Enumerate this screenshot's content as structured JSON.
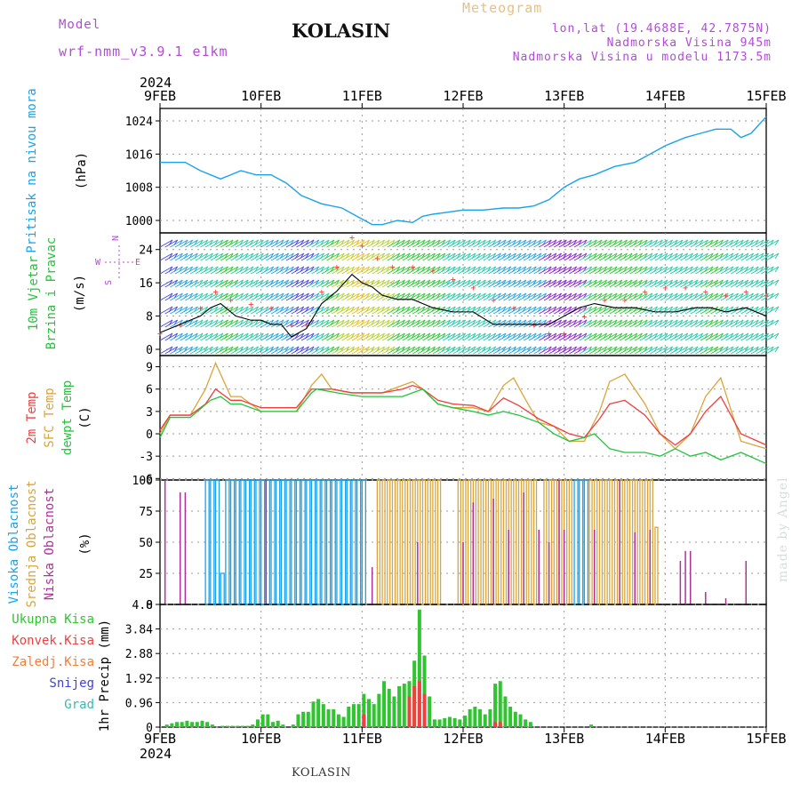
{
  "header": {
    "model_label": "Model",
    "model_name": "wrf-nmm_v3.9.1 e1km",
    "title": "Meteogram",
    "station": "KOLASIN",
    "coords": "lon,lat (19.4688E, 42.7875N)",
    "elevation": "Nadmorska Visina 945m",
    "model_elevation": "Nadmorska Visina u modelu 1173.5m"
  },
  "footer": {
    "station": "KOLASIN",
    "credit": "made by Angel"
  },
  "colors": {
    "pressure": "#1aa3ea",
    "wind_label": "#22c43a",
    "temp2m": "#f03e3e",
    "sfc": "#d9a53b",
    "dew": "#22c43a",
    "high_cloud": "#1aa3ea",
    "mid_cloud": "#d9a53b",
    "low_cloud": "#b0309a",
    "total_precip": "#30c430",
    "conv_precip": "#f04040",
    "frz_precip": "#f07f3a",
    "snow": "#4040dd",
    "grad": "#33bbbb",
    "purple_text": "#b24bd8"
  },
  "chart_data": [
    {
      "type": "line",
      "panel": "pressure",
      "ylabel": [
        "Pritisak na nivou mora",
        "(hPa)"
      ],
      "x_axis_top": {
        "year": "2024",
        "ticks": [
          "9FEB",
          "10FEB",
          "11FEB",
          "12FEB",
          "13FEB",
          "14FEB",
          "15FEB"
        ]
      },
      "x_axis_bottom": {
        "year": "2024",
        "ticks": [
          "9FEB",
          "10FEB",
          "11FEB",
          "12FEB",
          "13FEB",
          "14FEB",
          "15FEB"
        ]
      },
      "ylim": [
        997,
        1027
      ],
      "yticks": [
        1000,
        1008,
        1016,
        1024
      ],
      "grid": true,
      "series": [
        {
          "x": [
            0,
            0.25,
            0.4,
            0.6,
            0.8,
            0.95,
            1.1,
            1.25,
            1.4,
            1.6,
            1.8,
            1.95,
            2.1,
            2.2,
            2.35,
            2.5,
            2.6,
            2.7,
            2.85,
            3.0,
            3.2,
            3.4,
            3.55,
            3.7,
            3.85,
            4.0,
            4.15,
            4.3,
            4.5,
            4.7,
            4.85,
            5.0,
            5.1,
            5.2,
            5.35,
            5.5,
            5.65,
            5.75,
            5.85,
            6.0
          ],
          "values": [
            1014,
            1014,
            1012,
            1010,
            1012,
            1011,
            1011,
            1009,
            1006,
            1004,
            1003,
            1001,
            999,
            999,
            1000,
            999.5,
            1001,
            1001.5,
            1002,
            1002.5,
            1002.5,
            1003,
            1003,
            1003.5,
            1005,
            1008,
            1010,
            1011,
            1013,
            1014,
            1016,
            1018,
            1019,
            1020,
            1021,
            1022,
            1022,
            1020,
            1021,
            1025
          ]
        }
      ]
    },
    {
      "type": "line",
      "panel": "wind",
      "ylabel": [
        "10m Vjetar",
        "Brzina i Pravac",
        "(m/s)"
      ],
      "compass": {
        "n": "N",
        "s": "S",
        "e": "E",
        "w": "W"
      },
      "ylim": [
        -1.5,
        28
      ],
      "yticks": [
        0,
        8,
        16,
        24
      ],
      "series": [
        {
          "name": "speed",
          "x": [
            0,
            0.2,
            0.4,
            0.5,
            0.6,
            0.75,
            0.9,
            1.0,
            1.1,
            1.2,
            1.3,
            1.45,
            1.6,
            1.75,
            1.9,
            2.0,
            2.1,
            2.2,
            2.35,
            2.5,
            2.7,
            2.9,
            3.1,
            3.3,
            3.5,
            3.7,
            3.85,
            4.0,
            4.15,
            4.3,
            4.5,
            4.7,
            4.9,
            5.1,
            5.3,
            5.45,
            5.6,
            5.8,
            6.0
          ],
          "values": [
            4,
            6,
            8,
            10,
            11,
            8,
            7,
            7,
            6,
            6,
            3,
            5,
            11,
            14,
            18,
            16,
            15,
            13,
            12,
            12,
            10,
            9,
            9,
            6,
            6,
            6,
            6,
            8,
            10,
            11,
            10,
            10,
            9,
            9,
            10,
            10,
            9,
            10,
            8
          ]
        },
        {
          "name": "gust",
          "x": [
            0,
            0.2,
            0.4,
            0.55,
            0.7,
            0.9,
            1.1,
            1.3,
            1.45,
            1.6,
            1.75,
            1.9,
            2.0,
            2.15,
            2.3,
            2.5,
            2.7,
            2.9,
            3.1,
            3.3,
            3.5,
            3.7,
            3.85,
            4.0,
            4.2,
            4.4,
            4.6,
            4.8,
            5.0,
            5.2,
            5.4,
            5.6,
            5.8,
            6.0
          ],
          "values": [
            4,
            6,
            10,
            14,
            12,
            11,
            10,
            6,
            6,
            14,
            20,
            27,
            25,
            22,
            20,
            20,
            19,
            17,
            15,
            12,
            10,
            6,
            4,
            4,
            8,
            12,
            12,
            14,
            15,
            15,
            14,
            13,
            14,
            13
          ]
        }
      ]
    },
    {
      "type": "line",
      "panel": "temperature",
      "ylabel": [
        "2m Temp",
        "SFC Temp",
        "dewpt Temp",
        "(C)"
      ],
      "ylim": [
        -6.2,
        10.5
      ],
      "yticks": [
        -6,
        -3,
        0,
        3,
        6,
        9
      ],
      "series": [
        {
          "name": "2m Temp",
          "x": [
            0,
            0.1,
            0.3,
            0.45,
            0.55,
            0.7,
            0.8,
            1.0,
            1.2,
            1.35,
            1.5,
            1.55,
            1.7,
            1.9,
            2.0,
            2.2,
            2.4,
            2.5,
            2.6,
            2.75,
            2.9,
            3.1,
            3.25,
            3.4,
            3.55,
            3.75,
            3.9,
            4.05,
            4.2,
            4.35,
            4.45,
            4.6,
            4.8,
            4.95,
            5.1,
            5.25,
            5.4,
            5.55,
            5.75,
            6.0
          ],
          "values": [
            0.5,
            2.5,
            2.5,
            4,
            6,
            4.5,
            4.5,
            3.5,
            3.5,
            3.5,
            6,
            6,
            6,
            5.5,
            5.5,
            5.5,
            6,
            6.5,
            6,
            4.5,
            4,
            3.8,
            3,
            4.8,
            3.8,
            2,
            1,
            0,
            -0.5,
            2,
            4,
            4.5,
            2.5,
            0,
            -1.5,
            0,
            3,
            5,
            0,
            -1.5
          ]
        },
        {
          "name": "SFC Temp",
          "x": [
            0,
            0.1,
            0.3,
            0.45,
            0.55,
            0.7,
            0.8,
            1.0,
            1.2,
            1.35,
            1.5,
            1.6,
            1.7,
            1.9,
            2.0,
            2.2,
            2.4,
            2.5,
            2.6,
            2.75,
            2.9,
            3.1,
            3.25,
            3.4,
            3.5,
            3.6,
            3.75,
            3.9,
            4.05,
            4.2,
            4.35,
            4.45,
            4.6,
            4.8,
            4.95,
            5.1,
            5.25,
            5.4,
            5.55,
            5.75,
            6.0
          ],
          "values": [
            0,
            2.5,
            2.5,
            6,
            9.5,
            5,
            5,
            3,
            3,
            3,
            6.5,
            8,
            6,
            5.5,
            5.5,
            5.5,
            6.5,
            7,
            6,
            4,
            3.5,
            3.5,
            3,
            6.5,
            7.5,
            5,
            1.5,
            1,
            -1,
            -1,
            3,
            7,
            8,
            4,
            0,
            -2,
            0,
            5,
            7.5,
            -1,
            -2
          ]
        },
        {
          "name": "dewpt Temp",
          "x": [
            0,
            0.1,
            0.3,
            0.5,
            0.6,
            0.7,
            0.8,
            1.0,
            1.2,
            1.35,
            1.5,
            1.55,
            1.75,
            2.0,
            2.2,
            2.4,
            2.5,
            2.6,
            2.75,
            2.9,
            3.1,
            3.25,
            3.4,
            3.55,
            3.75,
            3.9,
            4.05,
            4.2,
            4.3,
            4.45,
            4.6,
            4.8,
            4.95,
            5.1,
            5.25,
            5.4,
            5.55,
            5.75,
            6.0
          ],
          "values": [
            -0.5,
            2.2,
            2.2,
            4.5,
            5,
            4,
            4,
            3,
            3,
            3,
            5.5,
            6,
            5.5,
            5,
            5,
            5,
            5.5,
            6,
            4,
            3.5,
            3,
            2.5,
            3,
            2.5,
            1.5,
            0,
            -1,
            -0.5,
            0,
            -2,
            -2.5,
            -2.5,
            -3,
            -2,
            -3,
            -2.5,
            -3.5,
            -2.5,
            -4
          ]
        }
      ]
    },
    {
      "type": "bar",
      "panel": "cloud",
      "ylabel": [
        "Visoka Oblacnost",
        "Srednja Oblacnost",
        "Niska Oblacnost",
        "(%)"
      ],
      "ylim": [
        0,
        100
      ],
      "yticks": [
        0,
        25,
        50,
        75,
        100
      ],
      "series": [
        {
          "name": "Visoka Oblacnost",
          "x": [
            0.45,
            0.5,
            0.55,
            0.6,
            0.65,
            0.7,
            0.75,
            0.8,
            0.85,
            0.9,
            0.95,
            1.0,
            1.05,
            1.1,
            1.15,
            1.2,
            1.25,
            1.3,
            1.35,
            1.4,
            1.45,
            1.5,
            1.55,
            1.6,
            1.65,
            1.7,
            1.75,
            1.8,
            1.85,
            1.9,
            1.95,
            2.0,
            4.1,
            4.15,
            4.2
          ],
          "values": [
            100,
            100,
            100,
            25,
            100,
            100,
            100,
            100,
            100,
            100,
            100,
            100,
            100,
            100,
            100,
            100,
            100,
            100,
            100,
            100,
            100,
            100,
            100,
            100,
            100,
            100,
            100,
            100,
            100,
            100,
            100,
            100,
            100,
            100,
            100
          ]
        },
        {
          "name": "Srednja Oblacnost",
          "x": [
            2.15,
            2.2,
            2.25,
            2.3,
            2.35,
            2.4,
            2.45,
            2.5,
            2.55,
            2.6,
            2.65,
            2.7,
            2.75,
            2.95,
            3.0,
            3.05,
            3.1,
            3.15,
            3.2,
            3.25,
            3.3,
            3.35,
            3.4,
            3.45,
            3.5,
            3.55,
            3.6,
            3.65,
            3.7,
            3.8,
            3.85,
            3.9,
            3.95,
            4.0,
            4.05,
            4.25,
            4.3,
            4.35,
            4.4,
            4.45,
            4.5,
            4.55,
            4.6,
            4.65,
            4.7,
            4.75,
            4.8,
            4.85,
            4.9
          ],
          "values": [
            100,
            100,
            100,
            100,
            100,
            100,
            100,
            100,
            100,
            100,
            100,
            100,
            100,
            100,
            100,
            100,
            100,
            100,
            100,
            100,
            100,
            100,
            100,
            100,
            100,
            100,
            100,
            100,
            100,
            100,
            100,
            100,
            100,
            100,
            100,
            100,
            100,
            100,
            100,
            100,
            100,
            100,
            100,
            100,
            100,
            100,
            100,
            100,
            62
          ]
        },
        {
          "name": "Niska Oblacnost",
          "x": [
            0.05,
            0.2,
            0.25,
            1.05,
            2.1,
            2.55,
            3.0,
            3.1,
            3.3,
            3.45,
            3.6,
            3.75,
            3.85,
            3.95,
            4.0,
            4.3,
            4.55,
            4.7,
            4.85,
            5.15,
            5.2,
            5.25,
            5.4,
            5.6,
            5.8
          ],
          "values": [
            100,
            90,
            90,
            100,
            30,
            50,
            50,
            82,
            85,
            60,
            90,
            60,
            50,
            100,
            60,
            60,
            100,
            58,
            60,
            35,
            43,
            43,
            10,
            5,
            35
          ]
        }
      ]
    },
    {
      "type": "bar",
      "panel": "precip",
      "ylabel": [
        "1hr Precip (mm)"
      ],
      "legend": [
        "Ukupna Kisa",
        "Konvek.Kisa",
        "Zaledj.Kisa",
        "Snijeg",
        "Grad"
      ],
      "ylim": [
        0,
        4.8
      ],
      "yticks": [
        0,
        0.96,
        1.92,
        2.88,
        3.84,
        4.8
      ],
      "series": [
        {
          "name": "Ukupna Kisa",
          "x": [
            0.05,
            0.1,
            0.15,
            0.2,
            0.25,
            0.3,
            0.35,
            0.4,
            0.45,
            0.5,
            0.6,
            0.65,
            0.7,
            0.75,
            0.8,
            0.85,
            0.9,
            0.95,
            1.0,
            1.05,
            1.1,
            1.15,
            1.2,
            1.3,
            1.35,
            1.4,
            1.45,
            1.5,
            1.55,
            1.6,
            1.65,
            1.7,
            1.75,
            1.8,
            1.85,
            1.9,
            1.95,
            2.0,
            2.05,
            2.1,
            2.15,
            2.2,
            2.25,
            2.3,
            2.35,
            2.4,
            2.45,
            2.5,
            2.55,
            2.6,
            2.65,
            2.7,
            2.75,
            2.8,
            2.85,
            2.9,
            2.95,
            3.0,
            3.05,
            3.1,
            3.15,
            3.2,
            3.25,
            3.3,
            3.35,
            3.4,
            3.45,
            3.5,
            3.55,
            3.6,
            3.65,
            4.25
          ],
          "values": [
            0.1,
            0.15,
            0.2,
            0.2,
            0.25,
            0.2,
            0.2,
            0.25,
            0.2,
            0.1,
            0.05,
            0.05,
            0.05,
            0.05,
            0.05,
            0.05,
            0.1,
            0.3,
            0.5,
            0.5,
            0.2,
            0.25,
            0.1,
            0.1,
            0.5,
            0.6,
            0.6,
            1.0,
            1.1,
            0.9,
            0.7,
            0.7,
            0.5,
            0.4,
            0.8,
            0.9,
            0.9,
            1.3,
            1.1,
            0.9,
            1.3,
            1.8,
            1.5,
            1.2,
            1.6,
            1.7,
            1.8,
            2.6,
            4.6,
            2.8,
            1.2,
            0.3,
            0.3,
            0.35,
            0.4,
            0.35,
            0.3,
            0.45,
            0.7,
            0.8,
            0.7,
            0.5,
            0.7,
            1.7,
            1.8,
            1.2,
            0.8,
            0.6,
            0.5,
            0.3,
            0.2,
            0.1
          ]
        },
        {
          "name": "Konvek.Kisa",
          "x": [
            2.0,
            2.45,
            2.5,
            2.55,
            2.6,
            3.3,
            3.35
          ],
          "values": [
            0.5,
            1.2,
            1.6,
            1.8,
            1.3,
            0.2,
            0.2
          ]
        }
      ]
    }
  ]
}
